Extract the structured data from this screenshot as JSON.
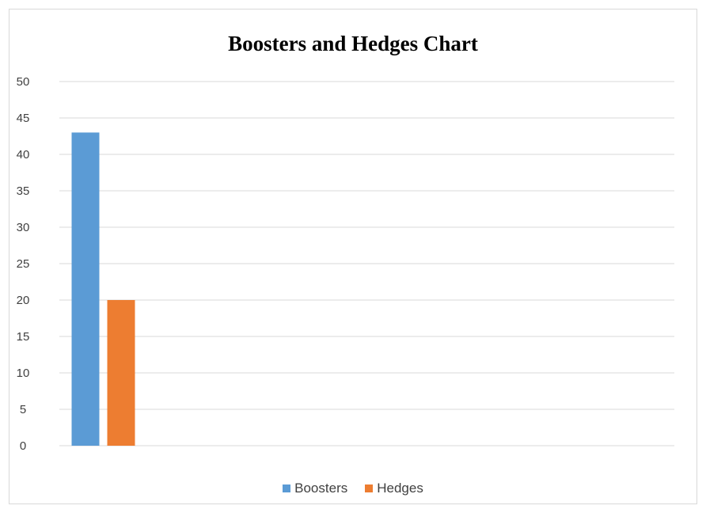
{
  "chart_data": {
    "type": "bar",
    "title": "Boosters and Hedges Chart",
    "categories": [
      ""
    ],
    "series": [
      {
        "name": "Boosters",
        "values": [
          43
        ],
        "color": "#5b9bd5"
      },
      {
        "name": "Hedges",
        "values": [
          20
        ],
        "color": "#ed7d31"
      }
    ],
    "xlabel": "",
    "ylabel": "",
    "ylim": [
      0,
      50
    ],
    "y_ticks": [
      "0",
      "5",
      "10",
      "15",
      "20",
      "25",
      "30",
      "35",
      "40",
      "45",
      "50"
    ],
    "grid": true,
    "legend_position": "bottom",
    "gridline_color": "#d9d9d9"
  }
}
